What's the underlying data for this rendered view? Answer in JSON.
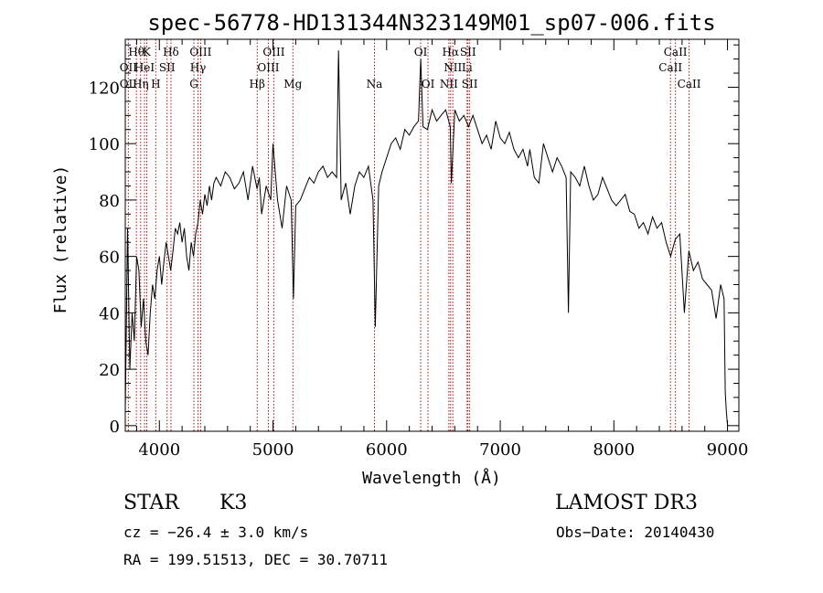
{
  "chart_data": {
    "type": "line",
    "title": "spec-56778-HD131344N323149M01_sp07-006.fits",
    "xlabel": "Wavelength (Å)",
    "ylabel": "Flux (relative)",
    "xlim": [
      3700,
      9100
    ],
    "ylim": [
      -2,
      137
    ],
    "xticks": [
      4000,
      5000,
      6000,
      7000,
      8000,
      9000
    ],
    "yticks": [
      0,
      20,
      40,
      60,
      80,
      100,
      120
    ],
    "line_color": "#000000",
    "marker_color": "#aa1111",
    "series": [
      {
        "x": [
          3700,
          3720,
          3740,
          3760,
          3780,
          3800,
          3820,
          3840,
          3860,
          3880,
          3900,
          3920,
          3940,
          3960,
          3980,
          4000,
          4020,
          4040,
          4060,
          4080,
          4100,
          4120,
          4140,
          4160,
          4180,
          4200,
          4220,
          4240,
          4260,
          4280,
          4300,
          4320,
          4340,
          4360,
          4380,
          4400,
          4420,
          4440,
          4460,
          4480,
          4500,
          4540,
          4580,
          4620,
          4660,
          4700,
          4740,
          4780,
          4820,
          4860,
          4880,
          4900,
          4940,
          4980,
          5000,
          5040,
          5080,
          5120,
          5160,
          5180,
          5200,
          5240,
          5280,
          5320,
          5360,
          5400,
          5440,
          5480,
          5520,
          5560,
          5577,
          5600,
          5640,
          5680,
          5720,
          5760,
          5800,
          5840,
          5880,
          5900,
          5930,
          5960,
          6000,
          6040,
          6080,
          6120,
          6160,
          6200,
          6240,
          6280,
          6300,
          6320,
          6360,
          6400,
          6440,
          6480,
          6520,
          6560,
          6570,
          6600,
          6640,
          6680,
          6720,
          6760,
          6800,
          6840,
          6880,
          6920,
          6960,
          7000,
          7040,
          7080,
          7120,
          7160,
          7200,
          7240,
          7260,
          7300,
          7340,
          7380,
          7420,
          7460,
          7500,
          7540,
          7580,
          7600,
          7620,
          7660,
          7700,
          7740,
          7780,
          7820,
          7860,
          7900,
          7940,
          7980,
          8020,
          8060,
          8100,
          8140,
          8180,
          8220,
          8260,
          8300,
          8340,
          8380,
          8420,
          8460,
          8500,
          8540,
          8580,
          8620,
          8660,
          8700,
          8740,
          8780,
          8820,
          8860,
          8900,
          8940,
          8970,
          8980,
          8990,
          9000
        ],
        "y": [
          5,
          70,
          20,
          40,
          30,
          60,
          55,
          35,
          45,
          30,
          25,
          40,
          50,
          45,
          55,
          60,
          50,
          58,
          65,
          60,
          55,
          62,
          70,
          68,
          72,
          65,
          70,
          60,
          55,
          65,
          60,
          68,
          72,
          80,
          75,
          82,
          78,
          85,
          80,
          86,
          88,
          85,
          90,
          88,
          84,
          86,
          90,
          80,
          92,
          84,
          88,
          75,
          85,
          80,
          100,
          80,
          70,
          85,
          80,
          45,
          78,
          80,
          84,
          88,
          86,
          90,
          92,
          88,
          90,
          88,
          133,
          80,
          86,
          75,
          85,
          90,
          88,
          92,
          80,
          35,
          85,
          90,
          95,
          100,
          102,
          98,
          105,
          103,
          106,
          108,
          130,
          106,
          105,
          112,
          108,
          110,
          112,
          106,
          86,
          112,
          108,
          110,
          106,
          110,
          105,
          100,
          103,
          98,
          108,
          102,
          100,
          104,
          98,
          95,
          98,
          92,
          98,
          88,
          86,
          100,
          95,
          90,
          95,
          92,
          88,
          40,
          90,
          88,
          85,
          92,
          85,
          80,
          82,
          88,
          84,
          80,
          78,
          80,
          82,
          76,
          75,
          70,
          72,
          68,
          74,
          70,
          72,
          65,
          60,
          66,
          68,
          40,
          62,
          55,
          58,
          52,
          50,
          48,
          38,
          50,
          45,
          12,
          5,
          0
        ]
      }
    ],
    "line_markers_top": [
      {
        "wavelength": 3798,
        "label": "Hθ"
      },
      {
        "wavelength": 3889,
        "label": "K"
      },
      {
        "wavelength": 4102,
        "label": "Hδ"
      },
      {
        "wavelength": 4363,
        "label": "OIII"
      },
      {
        "wavelength": 5007,
        "label": "OIII"
      },
      {
        "wavelength": 6300,
        "label": "OI"
      },
      {
        "wavelength": 6563,
        "label": "Hα"
      },
      {
        "wavelength": 6716,
        "label": "SII"
      },
      {
        "wavelength": 8542,
        "label": "CaII"
      }
    ],
    "line_markers_mid": [
      {
        "wavelength": 3727,
        "label": "OII"
      },
      {
        "wavelength": 3869,
        "label": "HeI"
      },
      {
        "wavelength": 4068,
        "label": "SII"
      },
      {
        "wavelength": 4340,
        "label": "Hγ"
      },
      {
        "wavelength": 4959,
        "label": "OIII"
      },
      {
        "wavelength": 6583,
        "label": "NII"
      },
      {
        "wavelength": 6708,
        "label": "Li"
      },
      {
        "wavelength": 8498,
        "label": "CaII"
      }
    ],
    "line_markers_low": [
      {
        "wavelength": 3727,
        "label": "OII"
      },
      {
        "wavelength": 3835,
        "label": "Hη"
      },
      {
        "wavelength": 3968,
        "label": "H"
      },
      {
        "wavelength": 4304,
        "label": "G"
      },
      {
        "wavelength": 4861,
        "label": "Hβ"
      },
      {
        "wavelength": 5175,
        "label": "Mg"
      },
      {
        "wavelength": 5893,
        "label": "Na"
      },
      {
        "wavelength": 6364,
        "label": "OI"
      },
      {
        "wavelength": 6548,
        "label": "NII"
      },
      {
        "wavelength": 6731,
        "label": "SII"
      },
      {
        "wavelength": 8662,
        "label": "CaII"
      }
    ]
  },
  "info": {
    "class_label": "STAR",
    "subclass": "K3",
    "survey": "LAMOST DR3",
    "cz": "cz = −26.4 ± 3.0 km/s",
    "obs_date": "Obs−Date: 20140430",
    "coords": "RA = 199.51513, DEC =  30.70711"
  }
}
